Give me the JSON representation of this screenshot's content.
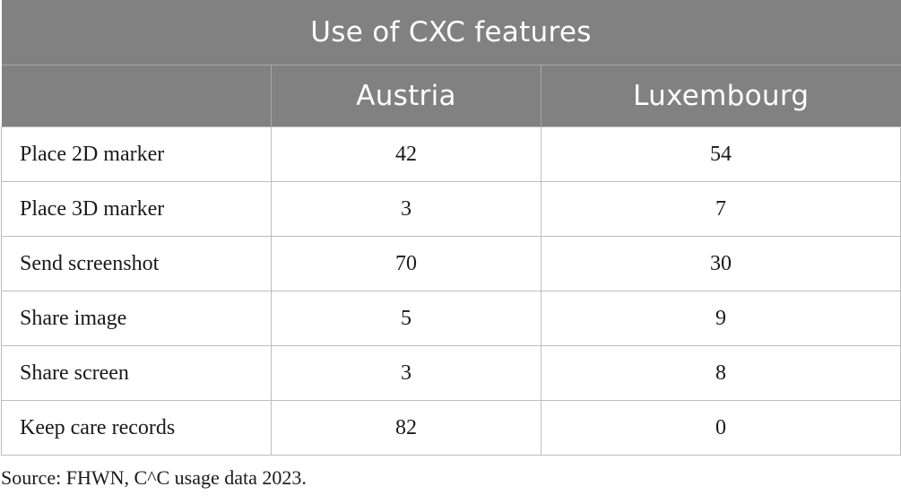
{
  "table": {
    "title": "Use of CXC features",
    "columns": [
      "",
      "Austria",
      "Luxembourg"
    ],
    "rows": [
      {
        "feature": "Place 2D marker",
        "austria": "42",
        "luxembourg": "54"
      },
      {
        "feature": "Place 3D marker",
        "austria": "3",
        "luxembourg": "7"
      },
      {
        "feature": "Send screenshot",
        "austria": "70",
        "luxembourg": "30"
      },
      {
        "feature": "Share image",
        "austria": "5",
        "luxembourg": "9"
      },
      {
        "feature": "Share screen",
        "austria": "3",
        "luxembourg": "8"
      },
      {
        "feature": "Keep care records",
        "austria": "82",
        "luxembourg": "0"
      }
    ]
  },
  "source_note": "Source: FHWN, C^C usage data 2023.",
  "colors": {
    "header_bg": "#818181",
    "header_text": "#ffffff",
    "grid": "#bdbdbd"
  }
}
